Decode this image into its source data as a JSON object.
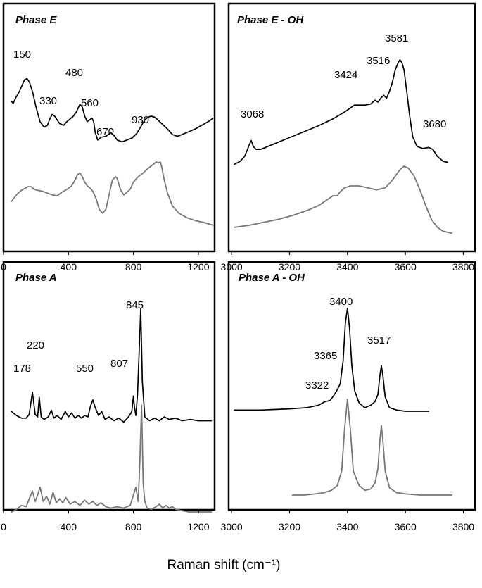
{
  "figure": {
    "xlabel": "Raman shift (cm⁻¹)"
  },
  "chart_data": [
    {
      "type": "line",
      "title": "Phase E",
      "xlim": [
        0,
        1300
      ],
      "xticks": [
        0,
        400,
        800,
        1200
      ],
      "xticklabels": [
        "0",
        "400",
        "800",
        "1200"
      ],
      "annotations": [
        "150",
        "330",
        "480",
        "560",
        "670",
        "930"
      ],
      "series": [
        {
          "color": "#000000",
          "x": [
            50,
            60,
            75,
            85,
            100,
            115,
            130,
            145,
            160,
            180,
            200,
            225,
            250,
            270,
            285,
            300,
            315,
            330,
            345,
            370,
            390,
            410,
            430,
            450,
            470,
            485,
            500,
            515,
            530,
            545,
            555,
            565,
            580,
            600,
            630,
            660,
            680,
            700,
            730,
            760,
            790,
            820,
            850,
            870,
            890,
            910,
            930,
            950,
            980,
            1010,
            1040,
            1070,
            1100,
            1140,
            1180,
            1220,
            1250,
            1270,
            1290
          ],
          "y": [
            0.66,
            0.64,
            0.7,
            0.73,
            0.78,
            0.84,
            0.9,
            0.91,
            0.87,
            0.76,
            0.6,
            0.44,
            0.38,
            0.4,
            0.47,
            0.52,
            0.5,
            0.46,
            0.42,
            0.4,
            0.44,
            0.47,
            0.5,
            0.55,
            0.63,
            0.6,
            0.5,
            0.44,
            0.46,
            0.48,
            0.44,
            0.32,
            0.24,
            0.27,
            0.28,
            0.32,
            0.29,
            0.24,
            0.22,
            0.24,
            0.26,
            0.31,
            0.4,
            0.46,
            0.49,
            0.5,
            0.49,
            0.46,
            0.41,
            0.36,
            0.3,
            0.28,
            0.3,
            0.33,
            0.36,
            0.4,
            0.43,
            0.45,
            0.48
          ]
        },
        {
          "color": "#777777",
          "x": [
            50,
            70,
            90,
            110,
            130,
            150,
            170,
            190,
            210,
            240,
            270,
            300,
            330,
            360,
            390,
            420,
            440,
            455,
            470,
            485,
            500,
            515,
            530,
            550,
            570,
            590,
            610,
            630,
            650,
            670,
            690,
            700,
            710,
            720,
            740,
            760,
            780,
            800,
            830,
            860,
            890,
            920,
            940,
            955,
            965,
            975,
            990,
            1010,
            1040,
            1080,
            1130,
            1180,
            1230,
            1270,
            1290
          ],
          "y": [
            -0.43,
            -0.38,
            -0.34,
            -0.31,
            -0.29,
            -0.27,
            -0.27,
            -0.3,
            -0.31,
            -0.32,
            -0.34,
            -0.36,
            -0.37,
            -0.33,
            -0.3,
            -0.26,
            -0.2,
            -0.14,
            -0.12,
            -0.16,
            -0.22,
            -0.26,
            -0.28,
            -0.32,
            -0.4,
            -0.52,
            -0.56,
            -0.52,
            -0.36,
            -0.2,
            -0.16,
            -0.18,
            -0.24,
            -0.3,
            -0.36,
            -0.33,
            -0.3,
            -0.22,
            -0.16,
            -0.12,
            -0.07,
            -0.03,
            0.0,
            -0.01,
            0.0,
            -0.06,
            -0.2,
            -0.34,
            -0.48,
            -0.56,
            -0.61,
            -0.64,
            -0.66,
            -0.68,
            -0.69
          ]
        }
      ]
    },
    {
      "type": "line",
      "title": "Phase E - OH",
      "xlim": [
        2990,
        3840
      ],
      "xticks": [
        3000,
        3200,
        3400,
        3600,
        3800
      ],
      "xticklabels": [
        "3000",
        "3200",
        "3400",
        "3600",
        "3800"
      ],
      "annotations": [
        "3068",
        "3424",
        "3516",
        "3581",
        "3680"
      ],
      "series": [
        {
          "color": "#000000",
          "x": [
            3010,
            3030,
            3045,
            3055,
            3060,
            3068,
            3075,
            3085,
            3100,
            3150,
            3200,
            3250,
            3300,
            3350,
            3390,
            3410,
            3424,
            3440,
            3460,
            3480,
            3495,
            3505,
            3515,
            3525,
            3535,
            3545,
            3555,
            3565,
            3575,
            3581,
            3588,
            3595,
            3605,
            3615,
            3625,
            3640,
            3660,
            3680,
            3695,
            3710,
            3730,
            3745
          ],
          "y": [
            0.12,
            0.15,
            0.2,
            0.27,
            0.31,
            0.36,
            0.3,
            0.27,
            0.27,
            0.33,
            0.39,
            0.45,
            0.51,
            0.58,
            0.65,
            0.69,
            0.72,
            0.72,
            0.72,
            0.73,
            0.77,
            0.75,
            0.79,
            0.82,
            0.79,
            0.86,
            0.95,
            1.08,
            1.15,
            1.18,
            1.15,
            1.08,
            0.85,
            0.6,
            0.4,
            0.3,
            0.28,
            0.29,
            0.27,
            0.2,
            0.15,
            0.14
          ]
        },
        {
          "color": "#777777",
          "x": [
            3010,
            3060,
            3110,
            3160,
            3210,
            3260,
            3300,
            3330,
            3350,
            3365,
            3375,
            3390,
            3410,
            3440,
            3470,
            3500,
            3530,
            3550,
            3565,
            3580,
            3595,
            3610,
            3630,
            3650,
            3670,
            3690,
            3710,
            3730,
            3760
          ],
          "y": [
            -0.52,
            -0.5,
            -0.47,
            -0.44,
            -0.4,
            -0.35,
            -0.3,
            -0.24,
            -0.2,
            -0.2,
            -0.16,
            -0.12,
            -0.1,
            -0.1,
            -0.12,
            -0.14,
            -0.12,
            -0.06,
            0.0,
            0.06,
            0.1,
            0.08,
            0.0,
            -0.14,
            -0.3,
            -0.44,
            -0.52,
            -0.56,
            -0.58
          ]
        }
      ]
    },
    {
      "type": "line",
      "title": "Phase A",
      "xlim": [
        0,
        1300
      ],
      "xticks": [
        0,
        400,
        800,
        1200
      ],
      "xticklabels": [
        "0",
        "400",
        "800",
        "1200"
      ],
      "annotations": [
        "178",
        "220",
        "550",
        "807",
        "845"
      ],
      "series": [
        {
          "color": "#000000",
          "x": [
            50,
            80,
            110,
            140,
            158,
            178,
            195,
            210,
            220,
            232,
            250,
            275,
            295,
            310,
            330,
            355,
            380,
            400,
            420,
            440,
            460,
            480,
            500,
            520,
            535,
            550,
            565,
            585,
            605,
            625,
            650,
            680,
            710,
            740,
            770,
            790,
            800,
            807,
            815,
            825,
            835,
            845,
            855,
            870,
            900,
            930,
            960,
            990,
            1020,
            1060,
            1100,
            1150,
            1200,
            1250,
            1280
          ],
          "y": [
            0.17,
            0.14,
            0.12,
            0.12,
            0.15,
            0.32,
            0.15,
            0.13,
            0.28,
            0.13,
            0.11,
            0.13,
            0.18,
            0.12,
            0.14,
            0.11,
            0.17,
            0.13,
            0.16,
            0.12,
            0.14,
            0.12,
            0.14,
            0.13,
            0.21,
            0.26,
            0.2,
            0.14,
            0.17,
            0.11,
            0.13,
            0.1,
            0.12,
            0.09,
            0.13,
            0.17,
            0.29,
            0.2,
            0.14,
            0.3,
            0.62,
            0.96,
            0.4,
            0.13,
            0.1,
            0.12,
            0.1,
            0.13,
            0.11,
            0.12,
            0.1,
            0.11,
            0.1,
            0.1,
            0.1
          ]
        },
        {
          "color": "#777777",
          "x": [
            50,
            80,
            110,
            140,
            158,
            178,
            195,
            210,
            225,
            245,
            265,
            285,
            305,
            325,
            345,
            365,
            385,
            410,
            440,
            470,
            500,
            525,
            550,
            575,
            600,
            630,
            660,
            700,
            740,
            780,
            800,
            815,
            830,
            840,
            850,
            860,
            870,
            885,
            910,
            940,
            960,
            980,
            1000,
            1020,
            1040,
            1060,
            1100,
            1140,
            1180,
            1230,
            1280
          ],
          "y": [
            -0.6,
            -0.58,
            -0.55,
            -0.56,
            -0.5,
            -0.44,
            -0.52,
            -0.47,
            -0.41,
            -0.52,
            -0.48,
            -0.54,
            -0.45,
            -0.53,
            -0.5,
            -0.53,
            -0.49,
            -0.54,
            -0.52,
            -0.55,
            -0.51,
            -0.54,
            -0.52,
            -0.55,
            -0.53,
            -0.56,
            -0.57,
            -0.56,
            -0.57,
            -0.55,
            -0.47,
            -0.41,
            -0.52,
            -0.2,
            0.22,
            -0.38,
            -0.52,
            -0.57,
            -0.58,
            -0.56,
            -0.54,
            -0.57,
            -0.55,
            -0.57,
            -0.56,
            -0.58,
            -0.59,
            -0.6,
            -0.6,
            -0.6,
            -0.6
          ]
        }
      ]
    },
    {
      "type": "line",
      "title": "Phase A - OH",
      "xlim": [
        2990,
        3840
      ],
      "xticks": [
        3000,
        3200,
        3400,
        3600,
        3800
      ],
      "xticklabels": [
        "3000",
        "3200",
        "3400",
        "3600",
        "3800"
      ],
      "annotations": [
        "3322",
        "3365",
        "3400",
        "3517"
      ],
      "series": [
        {
          "color": "#000000",
          "x": [
            3010,
            3100,
            3200,
            3260,
            3300,
            3322,
            3340,
            3355,
            3365,
            3375,
            3385,
            3393,
            3400,
            3407,
            3415,
            3425,
            3440,
            3460,
            3480,
            3495,
            3505,
            3512,
            3517,
            3522,
            3530,
            3545,
            3570,
            3600,
            3640,
            3680
          ],
          "y": [
            0.11,
            0.11,
            0.12,
            0.13,
            0.15,
            0.18,
            0.19,
            0.24,
            0.28,
            0.33,
            0.52,
            0.84,
            0.96,
            0.8,
            0.48,
            0.27,
            0.17,
            0.13,
            0.15,
            0.18,
            0.24,
            0.4,
            0.48,
            0.4,
            0.22,
            0.13,
            0.11,
            0.1,
            0.1,
            0.1
          ]
        },
        {
          "color": "#777777",
          "x": [
            3210,
            3250,
            3290,
            3320,
            3345,
            3365,
            3380,
            3390,
            3400,
            3410,
            3420,
            3440,
            3460,
            3480,
            3495,
            3505,
            3512,
            3517,
            3522,
            3530,
            3545,
            3570,
            3600,
            3650,
            3700,
            3760
          ],
          "y": [
            -0.6,
            -0.6,
            -0.59,
            -0.58,
            -0.56,
            -0.52,
            -0.4,
            -0.05,
            0.2,
            -0.05,
            -0.4,
            -0.52,
            -0.56,
            -0.55,
            -0.5,
            -0.38,
            -0.14,
            -0.02,
            -0.14,
            -0.4,
            -0.54,
            -0.58,
            -0.59,
            -0.6,
            -0.6,
            -0.6
          ]
        }
      ]
    }
  ]
}
